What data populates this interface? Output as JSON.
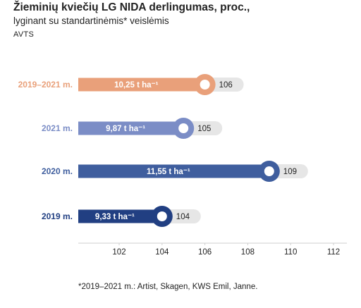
{
  "header": {
    "title": "Žieminių kviečių LG NIDA derlingumas, proc.,",
    "subtitle": "lyginant su standartinėmis* veislėmis",
    "source": "AVTS"
  },
  "footnote": "*2019–2021 m.: Artist, Skagen, KWS Emil, Janne.",
  "colors": {
    "2019–2021 m.": "#e9a07a",
    "2021 m.": "#7b8dc6",
    "2020 m.": "#3f5e9e",
    "2019 m.": "#213f82",
    "value_badge": "#e6e6e6",
    "axis": "#cfcfcf"
  },
  "chart_data": {
    "type": "bar",
    "orientation": "horizontal",
    "categories": [
      "2019–2021 m.",
      "2021 m.",
      "2020 m.",
      "2019 m."
    ],
    "values": [
      106,
      105,
      109,
      104
    ],
    "bar_labels": [
      "10,25 t ha⁻¹",
      "9,87 t ha⁻¹",
      "11,55 t ha⁻¹",
      "9,33 t ha⁻¹"
    ],
    "xlim": [
      100,
      112
    ],
    "xticks": [
      "102",
      "104",
      "106",
      "108",
      "110",
      "112"
    ],
    "xtick_values": [
      102,
      104,
      106,
      108,
      110,
      112
    ],
    "grid": false,
    "legend": "none"
  }
}
